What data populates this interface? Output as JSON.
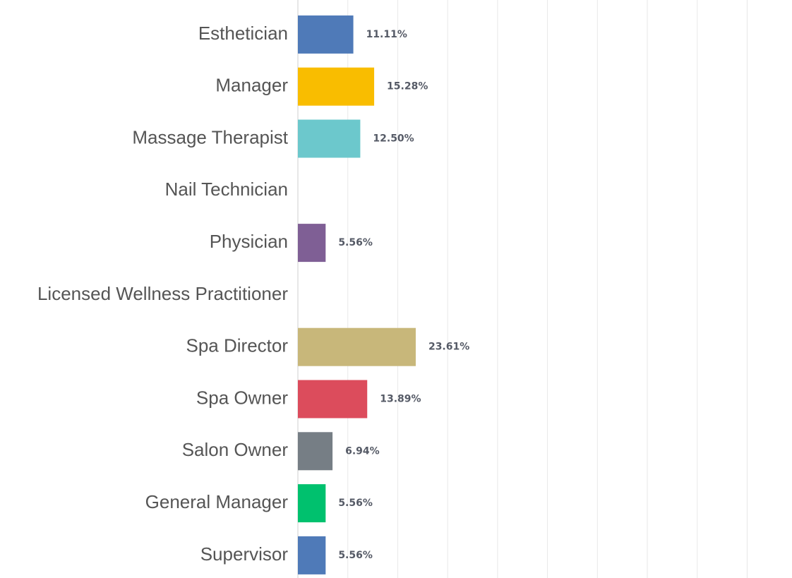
{
  "chart_data": {
    "type": "bar",
    "orientation": "horizontal",
    "categories": [
      "Esthetician",
      "Manager",
      "Massage Therapist",
      "Nail Technician",
      "Physician",
      "Licensed Wellness Practitioner",
      "Spa Director",
      "Spa Owner",
      "Salon Owner",
      "General Manager",
      "Supervisor"
    ],
    "values": [
      11.11,
      15.28,
      12.5,
      0,
      5.56,
      0,
      23.61,
      13.89,
      6.94,
      5.56,
      5.56
    ],
    "value_labels": [
      "11.11%",
      "15.28%",
      "12.50%",
      null,
      "5.56%",
      null,
      "23.61%",
      "13.89%",
      "6.94%",
      "5.56%",
      "5.56%"
    ],
    "colors": [
      "#4f7ab8",
      "#f9bd00",
      "#6cc8cc",
      null,
      "#7f5f95",
      null,
      "#c8b77a",
      "#dc4c5c",
      "#767e85",
      "#00c16e",
      "#4f7ab8"
    ],
    "xlim": [
      0,
      98.7
    ],
    "xticks": [
      0,
      10,
      20,
      30,
      40,
      50,
      60,
      70,
      80,
      90
    ],
    "grid": true
  }
}
